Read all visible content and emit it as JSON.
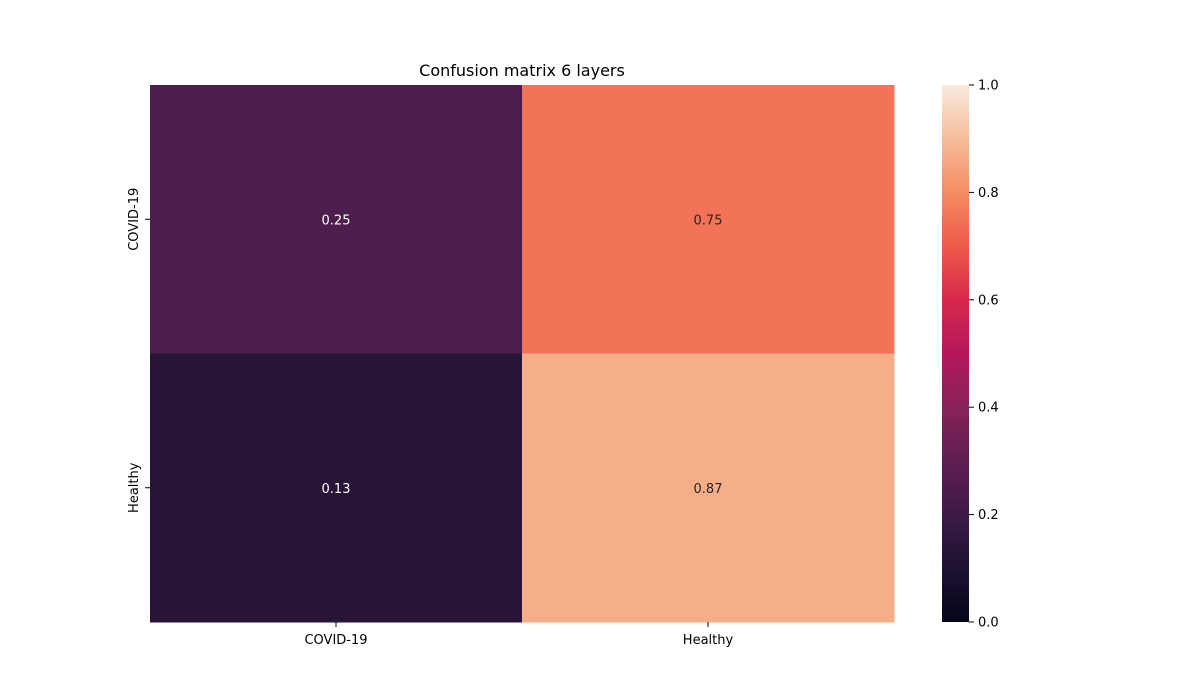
{
  "chart_data": {
    "type": "heatmap",
    "title": "Confusion matrix 6 layers",
    "x_categories": [
      "COVID-19",
      "Healthy"
    ],
    "y_categories": [
      "COVID-19",
      "Healthy"
    ],
    "values": [
      [
        0.25,
        0.75
      ],
      [
        0.13,
        0.87
      ]
    ],
    "value_labels": [
      [
        "0.25",
        "0.75"
      ],
      [
        "0.13",
        "0.87"
      ]
    ],
    "colorbar": {
      "range": [
        0,
        1
      ],
      "ticks": [
        "0.0",
        "0.2",
        "0.4",
        "0.6",
        "0.8",
        "1.0"
      ],
      "colormap": "rocket"
    },
    "xlabel": "",
    "ylabel": "",
    "grid": false
  }
}
